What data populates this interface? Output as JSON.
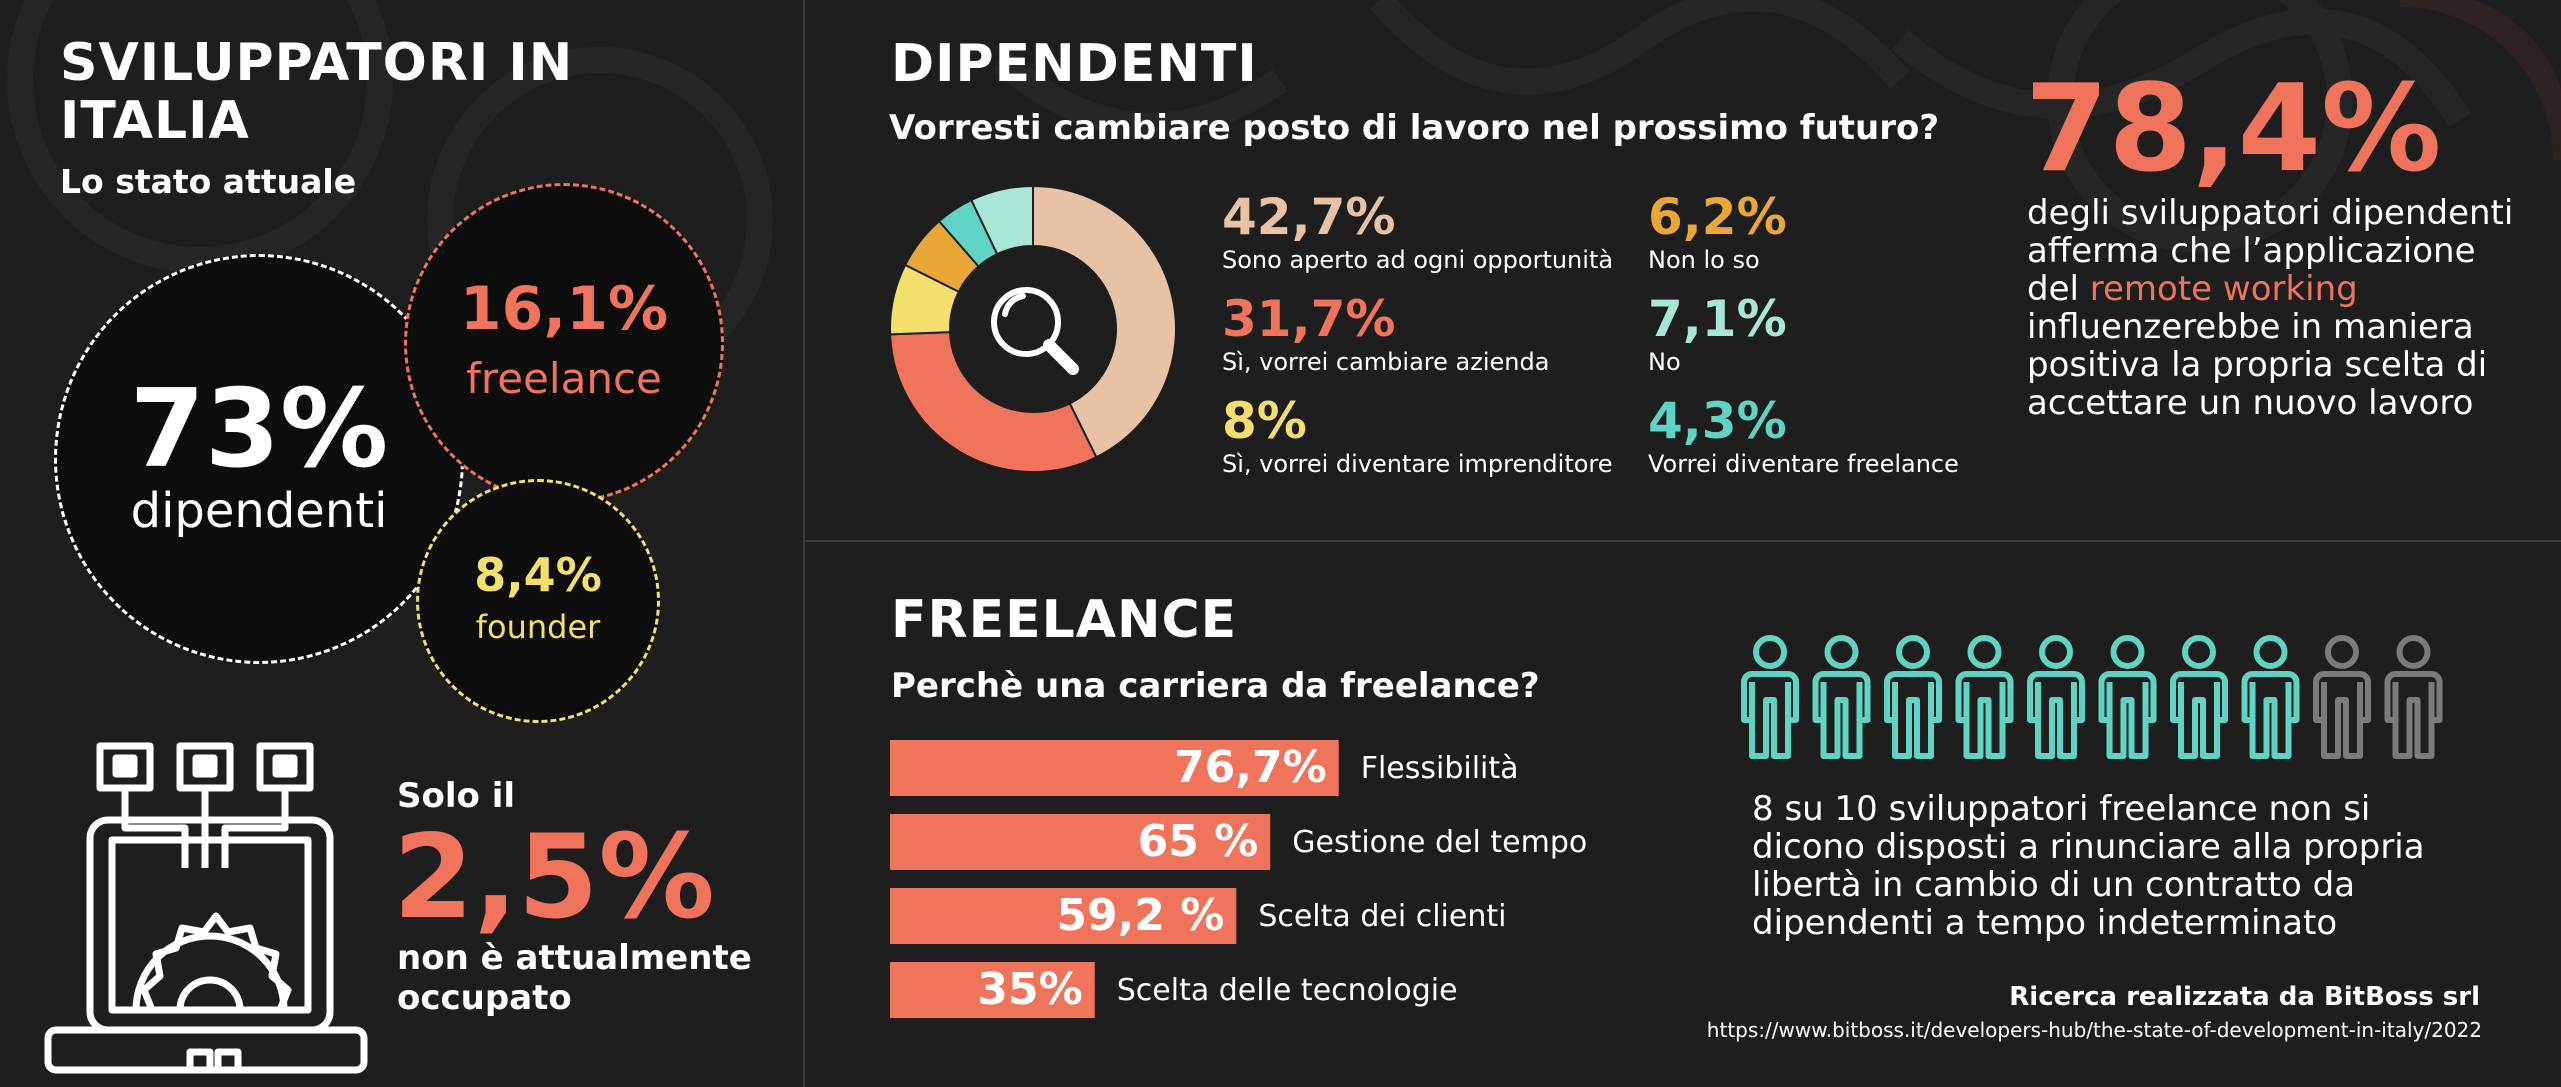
{
  "header": {
    "title": "SVILUPPATORI IN ITALIA",
    "subtitle": "Lo stato attuale"
  },
  "distribution": {
    "dipendenti": {
      "value": "73%",
      "label": "dipendenti"
    },
    "freelance": {
      "value": "16,1%",
      "label": "freelance"
    },
    "founder": {
      "value": "8,4%",
      "label": "founder"
    }
  },
  "unemployed": {
    "intro": "Solo il",
    "value": "2,5%",
    "text": "non è attualmente occupato"
  },
  "dipendenti_section": {
    "title": "DIPENDENTI",
    "question": "Vorresti cambiare posto di lavoro nel prossimo futuro?",
    "remote": {
      "value": "78,4%",
      "text_before": "degli sviluppatori dipendenti afferma che l’applicazione del ",
      "highlight": "remote working",
      "text_after": " influenzerebbe in maniera positiva la propria scelta di accettare un nuovo lavoro"
    }
  },
  "freelance_section": {
    "title": "FREELANCE",
    "question": "Perchè una carriera da freelance?",
    "people_text": "8 su 10 sviluppatori freelance non si dicono disposti a rinunciare alla propria libertà in cambio di un contratto da dipendenti a tempo indeterminato",
    "people_total": 10,
    "people_highlighted": 8
  },
  "footer": {
    "credit": "Ricerca realizzata da BitBoss srl",
    "url": "https://www.bitboss.it/developers-hub/the-state-of-development-in-italy/2022"
  },
  "colors": {
    "background": "#1e1e1e",
    "accent": "#f0735c",
    "yellow": "#f5df6c",
    "teal": "#5fd4c4",
    "peach": "#e8c2a5",
    "orange": "#e8a736",
    "mint": "#a8e6d8",
    "grey_person": "#7b7b7b"
  },
  "icons": {
    "donut_center": "magnifier-icon",
    "laptop": "laptop-gear-icon",
    "person": "person-icon"
  },
  "chart_data": [
    {
      "type": "pie",
      "title": "Vorresti cambiare posto di lavoro nel prossimo futuro?",
      "series": [
        {
          "name": "Sono aperto ad ogni opportunità",
          "value": 42.7,
          "label": "42,7%",
          "color": "#e8c2a5"
        },
        {
          "name": "Sì, vorrei cambiare azienda",
          "value": 31.7,
          "label": "31,7%",
          "color": "#f0735c"
        },
        {
          "name": "Sì, vorrei diventare imprenditore",
          "value": 8,
          "label": "8%",
          "color": "#f5df6c"
        },
        {
          "name": "Non lo so",
          "value": 6.2,
          "label": "6,2%",
          "color": "#e8a736"
        },
        {
          "name": "Vorrei diventare freelance",
          "value": 4.3,
          "label": "4,3%",
          "color": "#5fd4c4"
        },
        {
          "name": "No",
          "value": 7.1,
          "label": "7,1%",
          "color": "#a8e6d8"
        }
      ]
    },
    {
      "type": "bar",
      "title": "Perchè una carriera da freelance?",
      "categories": [
        "Flessibilità",
        "Gestione del tempo",
        "Scelta dei clienti",
        "Scelta delle tecnologie"
      ],
      "values": [
        76.7,
        65,
        59.2,
        35
      ],
      "value_labels": [
        "76,7%",
        "65 %",
        "59,2 %",
        "35%"
      ],
      "xlim": [
        0,
        100
      ]
    }
  ]
}
